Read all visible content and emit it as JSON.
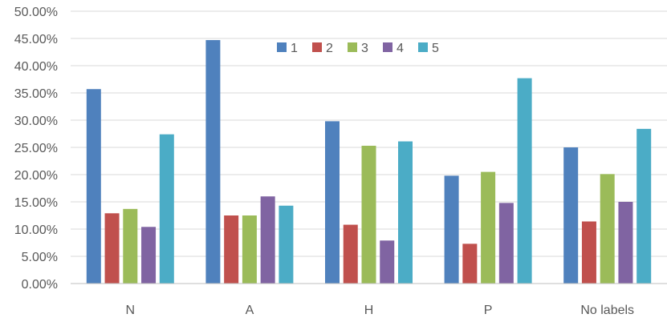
{
  "chart_data": {
    "type": "bar",
    "title": "",
    "xlabel": "",
    "ylabel": "",
    "categories": [
      "N",
      "A",
      "H",
      "P",
      "No labels"
    ],
    "ylim": [
      0,
      50
    ],
    "y_ticks": [
      0,
      5,
      10,
      15,
      20,
      25,
      30,
      35,
      40,
      45,
      50
    ],
    "y_tick_labels": [
      "0.00%",
      "5.00%",
      "10.00%",
      "15.00%",
      "20.00%",
      "25.00%",
      "30.00%",
      "35.00%",
      "40.00%",
      "45.00%",
      "50.00%"
    ],
    "grid": true,
    "legend_position": "top-center",
    "series": [
      {
        "name": "1",
        "color": "#4f81bd",
        "values": [
          35.7,
          44.7,
          29.8,
          19.8,
          25.0
        ]
      },
      {
        "name": "2",
        "color": "#c0504d",
        "values": [
          12.9,
          12.5,
          10.8,
          7.3,
          11.4
        ]
      },
      {
        "name": "3",
        "color": "#9bbb59",
        "values": [
          13.7,
          12.5,
          25.3,
          20.5,
          20.1
        ]
      },
      {
        "name": "4",
        "color": "#8064a2",
        "values": [
          10.4,
          16.0,
          7.9,
          14.8,
          15.0
        ]
      },
      {
        "name": "5",
        "color": "#4bacc6",
        "values": [
          27.4,
          14.3,
          26.1,
          37.7,
          28.4
        ]
      }
    ]
  }
}
